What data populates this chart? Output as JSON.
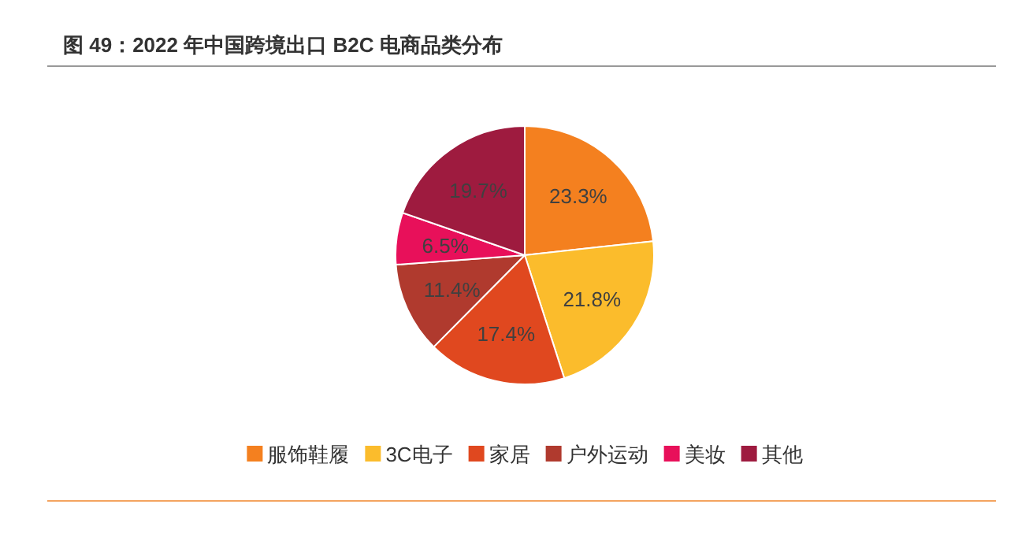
{
  "chart_data": {
    "type": "pie",
    "title": "图 49：2022 年中国跨境出口 B2C 电商品类分布",
    "categories": [
      "服饰鞋履",
      "3C电子",
      "家居",
      "户外运动",
      "美妆",
      "其他"
    ],
    "values": [
      23.3,
      21.8,
      17.4,
      11.4,
      6.5,
      19.7
    ],
    "colors": [
      "#f4801f",
      "#fbbc2c",
      "#e0481f",
      "#b03a2e",
      "#e8105a",
      "#9e1b3f"
    ],
    "value_labels": [
      "23.3%",
      "21.8%",
      "17.4%",
      "11.4%",
      "6.5%",
      "19.7%"
    ],
    "legend": "bottom"
  }
}
